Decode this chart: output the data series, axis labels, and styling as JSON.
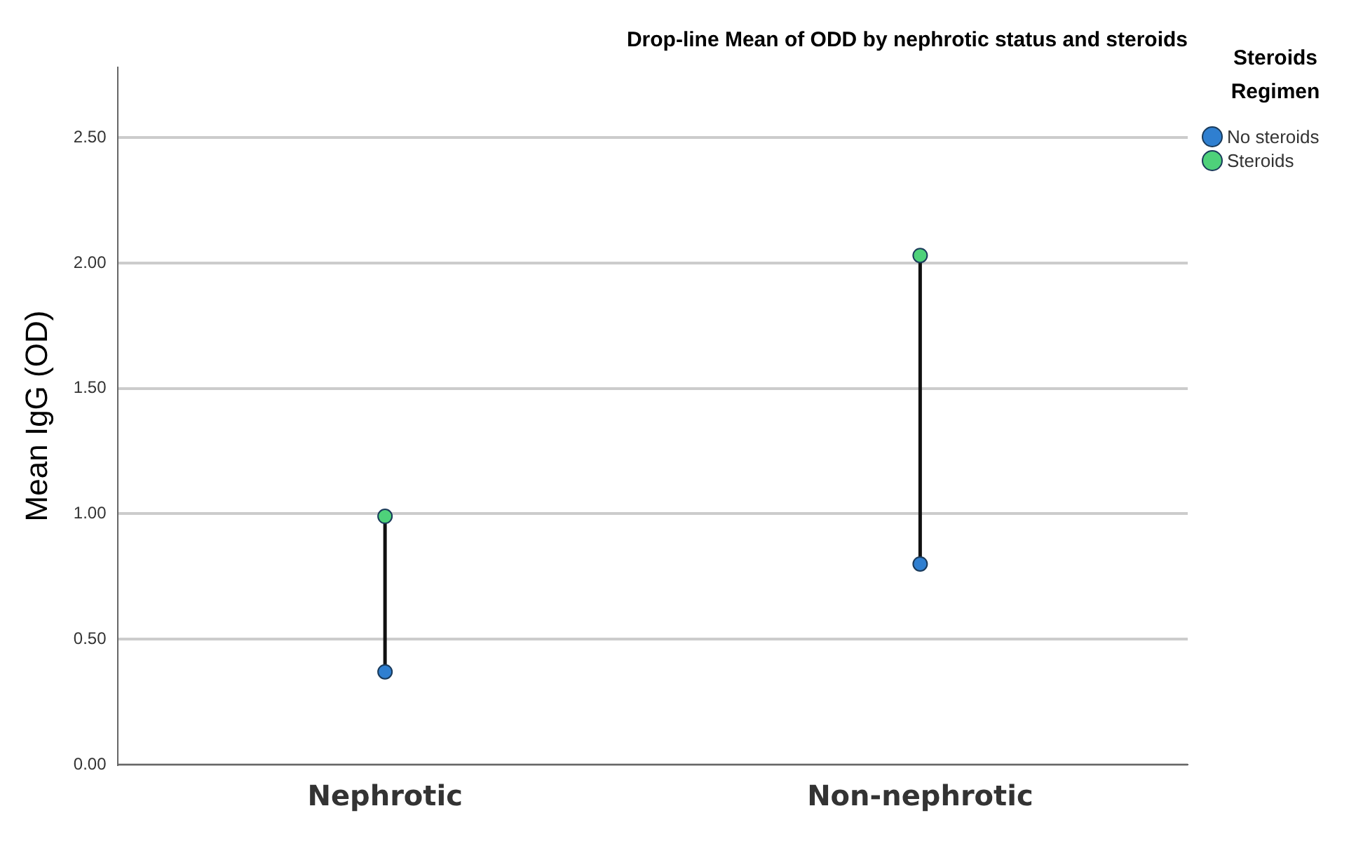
{
  "chart_data": {
    "type": "scatter",
    "title": "Drop-line Mean of ODD by nephrotic status and steroids",
    "ylabel": "Mean IgG (OD)",
    "legend_title": "Steroids Regimen",
    "categories": [
      "Nephrotic",
      "Non-nephrotic"
    ],
    "series": [
      {
        "name": "No steroids",
        "color": "#2f7fd0",
        "values": [
          0.37,
          0.8
        ]
      },
      {
        "name": "Steroids",
        "color": "#4ed17a",
        "values": [
          0.99,
          2.03
        ]
      }
    ],
    "ylim": [
      0,
      2.78
    ],
    "yticks": [
      {
        "value": 0,
        "label": "0.00"
      },
      {
        "value": 0.5,
        "label": "0.50"
      },
      {
        "value": 1,
        "label": "1.00"
      },
      {
        "value": 1.5,
        "label": "1.50"
      },
      {
        "value": 2,
        "label": "2.00"
      },
      {
        "value": 2.5,
        "label": "2.50"
      }
    ],
    "grid": "y",
    "legend": "top right",
    "marker": "circle"
  }
}
